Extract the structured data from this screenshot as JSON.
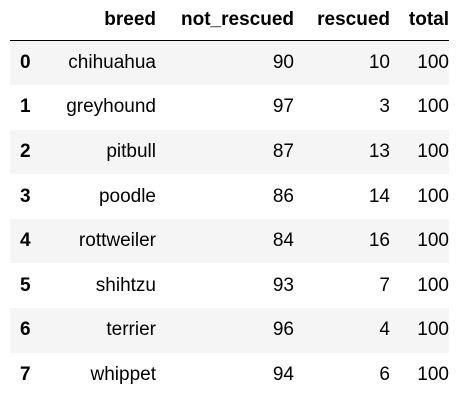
{
  "table": {
    "columns": [
      "",
      "breed",
      "not_rescued",
      "rescued",
      "total"
    ],
    "rows": [
      {
        "index": "0",
        "breed": "chihuahua",
        "not_rescued": "90",
        "rescued": "10",
        "total": "100"
      },
      {
        "index": "1",
        "breed": "greyhound",
        "not_rescued": "97",
        "rescued": "3",
        "total": "100"
      },
      {
        "index": "2",
        "breed": "pitbull",
        "not_rescued": "87",
        "rescued": "13",
        "total": "100"
      },
      {
        "index": "3",
        "breed": "poodle",
        "not_rescued": "86",
        "rescued": "14",
        "total": "100"
      },
      {
        "index": "4",
        "breed": "rottweiler",
        "not_rescued": "84",
        "rescued": "16",
        "total": "100"
      },
      {
        "index": "5",
        "breed": "shihtzu",
        "not_rescued": "93",
        "rescued": "7",
        "total": "100"
      },
      {
        "index": "6",
        "breed": "terrier",
        "not_rescued": "96",
        "rescued": "4",
        "total": "100"
      },
      {
        "index": "7",
        "breed": "whippet",
        "not_rescued": "94",
        "rescued": "6",
        "total": "100"
      }
    ]
  },
  "colors": {
    "stripe": "#f5f5f5",
    "header_rule": "#000000"
  }
}
